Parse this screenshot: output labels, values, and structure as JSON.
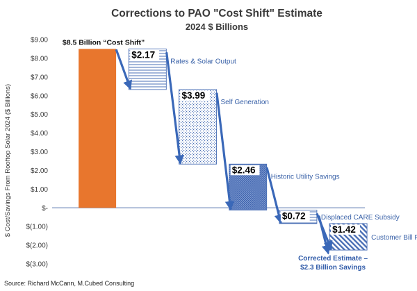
{
  "chart_data": {
    "type": "bar",
    "title": "Corrections to PAO \"Cost Shift\" Estimate",
    "subtitle": "2024 $ Billions",
    "ylabel": "$ Cost/Savings From Rooftop Solar 2024 ($ Billions)",
    "ylim": [
      -3,
      9
    ],
    "yticks": [
      {
        "value": 9,
        "label": "$9.00"
      },
      {
        "value": 8,
        "label": "$8.00"
      },
      {
        "value": 7,
        "label": "$7.00"
      },
      {
        "value": 6,
        "label": "$6.00"
      },
      {
        "value": 5,
        "label": "$5.00"
      },
      {
        "value": 4,
        "label": "$4.00"
      },
      {
        "value": 3,
        "label": "$3.00"
      },
      {
        "value": 2,
        "label": "$2.00"
      },
      {
        "value": 1,
        "label": "$1.00"
      },
      {
        "value": 0,
        "label": "$-"
      },
      {
        "value": -1,
        "label": "$(1.00)"
      },
      {
        "value": -2,
        "label": "$(2.00)"
      },
      {
        "value": -3,
        "label": "$(3.00)"
      }
    ],
    "grid": false,
    "bars": [
      {
        "name": "$8.5 Billion “Cost Shift”",
        "start": 0,
        "end": 8.5,
        "label": "",
        "color": "#e8762d",
        "pattern": "solid"
      },
      {
        "name": "Rates & Solar Output",
        "start": 8.5,
        "end": 6.33,
        "label": "$2.17",
        "color": "#4a6fb5",
        "pattern": "hlines"
      },
      {
        "name": "Self Generation",
        "start": 6.33,
        "end": 2.34,
        "label": "$3.99",
        "color": "#4a6fb5",
        "pattern": "dots"
      },
      {
        "name": "Historic Utility Savings",
        "start": 2.34,
        "end": -0.12,
        "label": "$2.46",
        "color": "#4a6fb5",
        "pattern": "dense"
      },
      {
        "name": "Displaced CARE Subsidy",
        "start": -0.12,
        "end": -0.84,
        "label": "$0.72",
        "color": "#4a6fb5",
        "pattern": "hlines"
      },
      {
        "name": "Customer Bill Payments",
        "start": -0.84,
        "end": -2.26,
        "label": "$1.42",
        "color": "#4a6fb5",
        "pattern": "diag"
      }
    ],
    "lead_label": "$8.5 Billion “Cost Shift”",
    "conclusion": [
      "Corrected Estimate –",
      "$2.3 Billion Savings"
    ],
    "conclusion_value": -2.3,
    "arrow_color": "#3a68b8"
  },
  "source": "Source: Richard McCann, M.Cubed Consulting"
}
